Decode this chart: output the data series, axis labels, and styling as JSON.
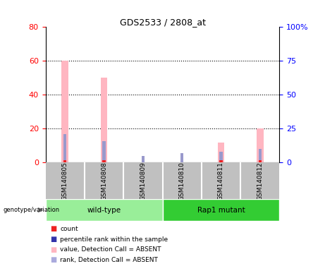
{
  "title": "GDS2533 / 2808_at",
  "samples": [
    "GSM140805",
    "GSM140808",
    "GSM140809",
    "GSM140810",
    "GSM140811",
    "GSM140812"
  ],
  "pink_values": [
    60,
    50,
    0,
    0,
    12,
    20
  ],
  "blue_values": [
    21,
    16,
    5,
    7,
    8,
    10
  ],
  "red_values": [
    1,
    1,
    0,
    0,
    1,
    1
  ],
  "ylim_left": [
    0,
    80
  ],
  "ylim_right": [
    0,
    100
  ],
  "yticks_left": [
    0,
    20,
    40,
    60,
    80
  ],
  "yticks_right": [
    0,
    25,
    50,
    75,
    100
  ],
  "yticklabels_right": [
    "0",
    "25",
    "50",
    "75",
    "100%"
  ],
  "color_pink": "#FFB6C1",
  "color_blue": "#9999CC",
  "color_red": "#EE2222",
  "color_dark_blue": "#3333AA",
  "bg_sample_area": "#C0C0C0",
  "bg_group_wt": "#99EE99",
  "bg_group_rap": "#33CC33",
  "wt_label": "wild-type",
  "rap_label": "Rap1 mutant",
  "genotype_label": "genotype/variation",
  "legend_items": [
    {
      "label": "count",
      "color": "#EE2222"
    },
    {
      "label": "percentile rank within the sample",
      "color": "#3333AA"
    },
    {
      "label": "value, Detection Call = ABSENT",
      "color": "#FFB6C1"
    },
    {
      "label": "rank, Detection Call = ABSENT",
      "color": "#AAAADD"
    }
  ]
}
